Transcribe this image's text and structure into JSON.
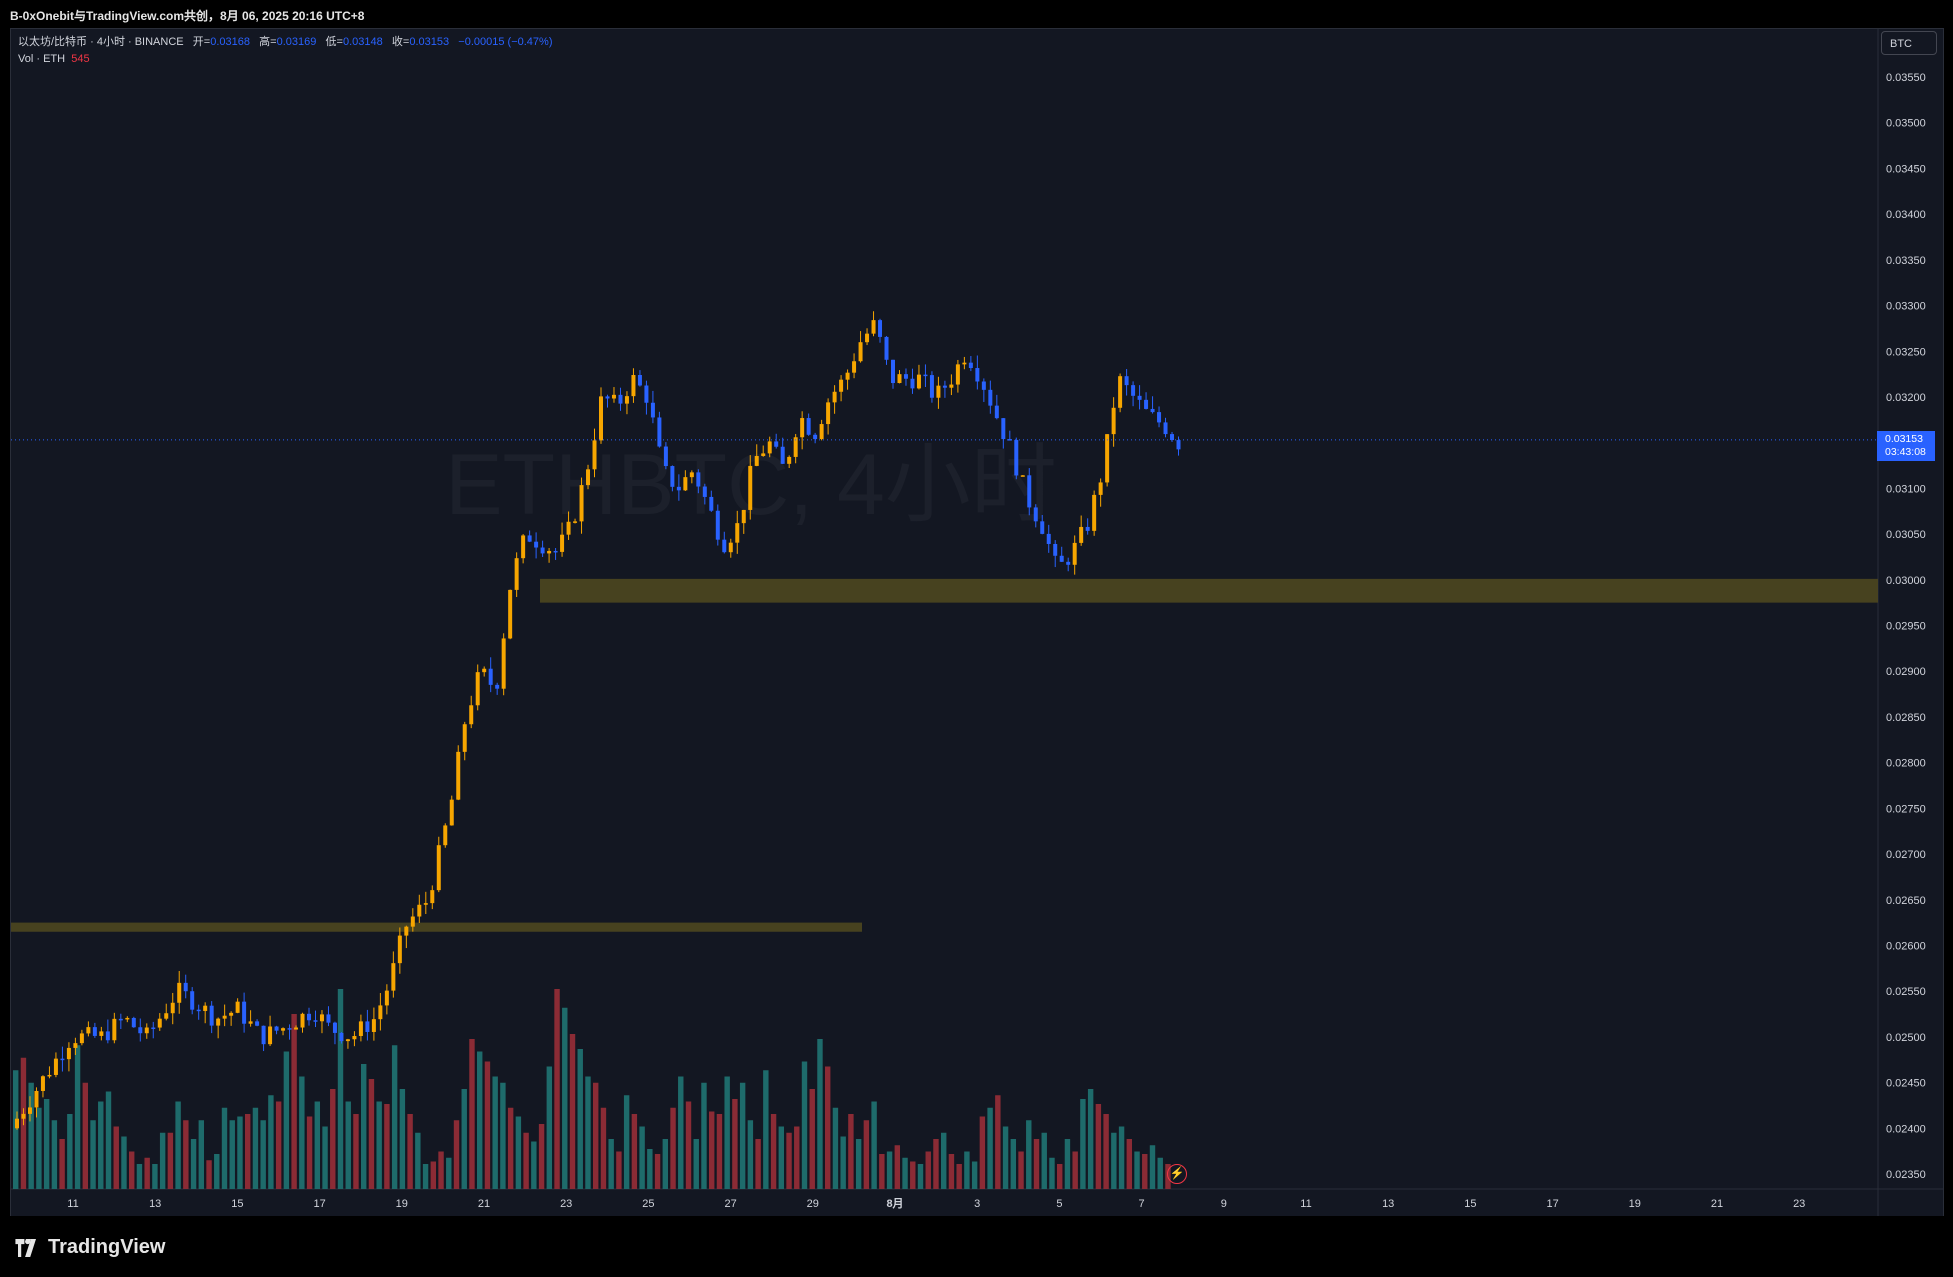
{
  "header": {
    "title": "B-0xOnebit与TradingView.com共创，8月 06, 2025 20:16 UTC+8"
  },
  "legend": {
    "symbol_line": "以太坊/比特币 · 4小时 · BINANCE",
    "open_label": "开=",
    "open_value": "0.03168",
    "high_label": "高=",
    "high_value": "0.03169",
    "low_label": "低=",
    "low_value": "0.03148",
    "close_label": "收=",
    "close_value": "0.03153",
    "change": "−0.00015 (−0.47%)",
    "vol_label": "Vol · ETH",
    "vol_value": "545"
  },
  "toolbar": {
    "currency": "BTC"
  },
  "price_tag": {
    "price": "0.03153",
    "countdown": "03:43:08"
  },
  "watermark": "ETHBTC, 4小时",
  "brand": "TradingView",
  "colors": {
    "background": "#131722",
    "up": "#f7a600",
    "down": "#2962ff",
    "vol_up": "#1e6b6b",
    "vol_down": "#8b2b35",
    "zone": "#4a4520"
  },
  "chart_data": {
    "type": "candlestick",
    "title": "",
    "y_axis": {
      "min": 0.0233,
      "max": 0.0358,
      "ticks": [
        "0.03550",
        "0.03500",
        "0.03450",
        "0.03400",
        "0.03350",
        "0.03300",
        "0.03250",
        "0.03200",
        "0.03150",
        "0.03100",
        "0.03050",
        "0.03000",
        "0.02950",
        "0.02900",
        "0.02850",
        "0.02800",
        "0.02750",
        "0.02700",
        "0.02650",
        "0.02600",
        "0.02550",
        "0.02500",
        "0.02450",
        "0.02400",
        "0.02350"
      ]
    },
    "x_axis": {
      "ticks": [
        "11",
        "13",
        "15",
        "17",
        "19",
        "21",
        "23",
        "25",
        "27",
        "29",
        "8月",
        "3",
        "5",
        "7",
        "9",
        "11",
        "13",
        "15",
        "17",
        "19",
        "21",
        "23"
      ]
    },
    "current_price": 0.03153,
    "zones": [
      {
        "from": 0.02975,
        "to": 0.03001,
        "label": ""
      },
      {
        "from": 0.02615,
        "to": 0.02625,
        "label": ""
      }
    ],
    "path": [
      [
        0,
        0.024
      ],
      [
        4,
        0.0245
      ],
      [
        8,
        0.025
      ],
      [
        12,
        0.025
      ],
      [
        15,
        0.0252
      ],
      [
        18,
        0.025
      ],
      [
        22,
        0.0255
      ],
      [
        24,
        0.0254
      ],
      [
        27,
        0.0252
      ],
      [
        30,
        0.0253
      ],
      [
        33,
        0.025
      ],
      [
        36,
        0.0251
      ],
      [
        40,
        0.0253
      ],
      [
        42,
        0.0251
      ],
      [
        45,
        0.025
      ],
      [
        48,
        0.0252
      ],
      [
        50,
        0.0256
      ],
      [
        52,
        0.0262
      ],
      [
        55,
        0.0265
      ],
      [
        58,
        0.0275
      ],
      [
        60,
        0.0285
      ],
      [
        62,
        0.029
      ],
      [
        64,
        0.0288
      ],
      [
        66,
        0.03
      ],
      [
        68,
        0.0305
      ],
      [
        70,
        0.0304
      ],
      [
        72,
        0.0303
      ],
      [
        74,
        0.0306
      ],
      [
        76,
        0.0312
      ],
      [
        78,
        0.032
      ],
      [
        80,
        0.0319
      ],
      [
        82,
        0.0322
      ],
      [
        84,
        0.032
      ],
      [
        86,
        0.0312
      ],
      [
        88,
        0.031
      ],
      [
        90,
        0.0312
      ],
      [
        92,
        0.0308
      ],
      [
        94,
        0.0304
      ],
      [
        96,
        0.0306
      ],
      [
        98,
        0.0313
      ],
      [
        100,
        0.0315
      ],
      [
        102,
        0.0312
      ],
      [
        104,
        0.0318
      ],
      [
        106,
        0.0316
      ],
      [
        108,
        0.032
      ],
      [
        110,
        0.0322
      ],
      [
        112,
        0.0326
      ],
      [
        114,
        0.0328
      ],
      [
        116,
        0.0322
      ],
      [
        118,
        0.0322
      ],
      [
        120,
        0.0322
      ],
      [
        122,
        0.032
      ],
      [
        124,
        0.0322
      ],
      [
        126,
        0.0325
      ],
      [
        128,
        0.0322
      ],
      [
        130,
        0.0318
      ],
      [
        132,
        0.0314
      ],
      [
        134,
        0.0309
      ],
      [
        136,
        0.0306
      ],
      [
        138,
        0.0301
      ],
      [
        140,
        0.0303
      ],
      [
        142,
        0.0306
      ],
      [
        144,
        0.0312
      ],
      [
        146,
        0.0322
      ],
      [
        148,
        0.032
      ],
      [
        150,
        0.0318
      ],
      [
        152,
        0.0317
      ],
      [
        154,
        0.0315
      ]
    ],
    "volume": [
      95,
      105,
      85,
      65,
      72,
      55,
      40,
      60,
      115,
      85,
      55,
      70,
      78,
      50,
      42,
      30,
      20,
      25,
      20,
      45,
      45,
      70,
      55,
      40,
      55,
      23,
      28,
      65,
      55,
      58,
      60,
      65,
      55,
      75,
      70,
      110,
      140,
      90,
      58,
      70,
      50,
      80,
      160,
      70,
      60,
      100,
      88,
      70,
      68,
      115,
      80,
      60,
      45,
      20,
      22,
      30,
      25,
      55,
      80,
      120,
      110,
      102,
      90,
      85,
      65,
      58,
      45,
      38,
      52,
      98,
      160,
      145,
      124,
      112,
      90,
      85,
      65,
      40,
      30,
      75,
      60,
      50,
      32,
      28,
      40,
      65,
      90,
      70,
      40,
      85,
      62,
      60,
      90,
      72,
      85,
      55,
      40,
      95,
      60,
      50,
      45,
      50,
      102,
      80,
      120,
      98,
      65,
      42,
      60,
      40,
      55,
      70,
      28,
      30,
      35,
      25,
      22,
      20,
      30,
      40,
      45,
      28,
      20,
      30,
      22,
      58,
      65,
      75,
      50,
      40,
      30,
      55,
      40,
      45,
      25,
      20,
      40,
      30,
      72,
      80,
      68,
      60,
      45,
      50,
      40,
      30,
      28,
      35,
      25,
      20
    ],
    "volume_up": [
      1,
      0,
      1,
      1,
      1,
      1,
      0,
      1,
      1,
      0,
      1,
      1,
      1,
      0,
      1,
      0,
      1,
      0,
      1,
      1,
      0,
      1,
      0,
      1,
      1,
      0,
      1,
      1,
      1,
      1,
      0,
      1,
      1,
      1,
      0,
      1,
      0,
      1,
      0,
      1,
      1,
      0,
      1,
      1,
      0,
      1,
      0,
      1,
      0,
      1,
      1,
      0,
      1,
      1,
      0,
      0,
      1,
      0,
      1,
      0,
      1,
      0,
      1,
      1,
      0,
      1,
      0,
      1,
      0,
      1,
      0,
      1,
      0,
      1,
      1,
      0,
      0,
      1,
      0,
      1,
      0,
      1,
      1,
      0,
      1,
      0,
      1,
      0,
      1,
      1,
      0,
      0,
      1,
      0,
      1,
      1,
      0,
      1,
      0,
      1,
      0,
      0,
      1,
      0,
      1,
      0,
      1,
      1,
      0,
      1,
      0,
      1,
      0,
      1,
      0,
      1,
      0,
      1,
      0,
      0,
      1,
      0,
      0,
      1,
      1,
      0,
      1,
      0,
      1,
      1,
      0,
      1,
      0,
      1,
      1,
      0,
      1,
      0,
      1,
      1,
      0,
      0,
      1,
      1,
      0,
      1,
      0,
      1,
      1,
      0
    ]
  }
}
